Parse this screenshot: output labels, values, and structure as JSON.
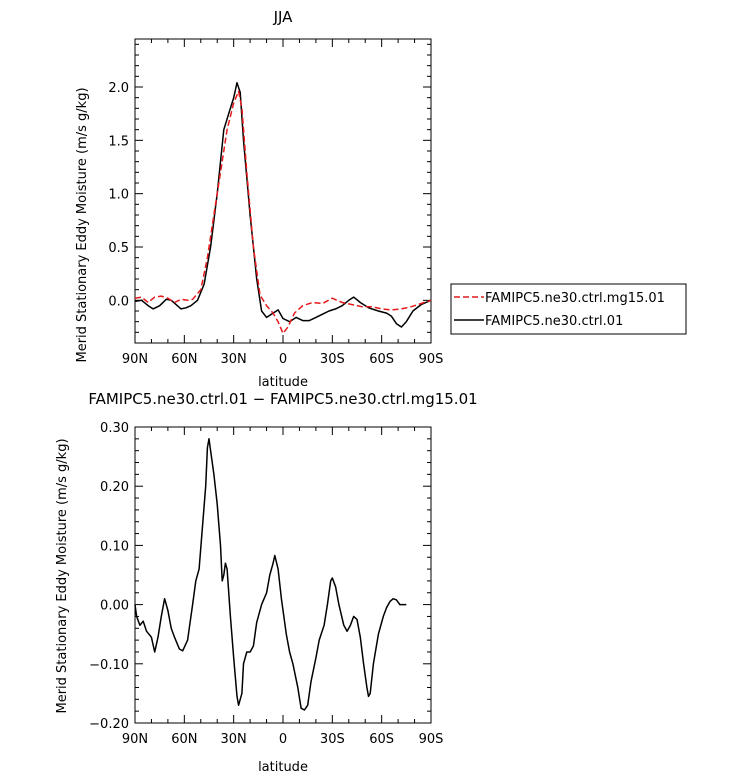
{
  "chart_data": [
    {
      "type": "line",
      "title": "JJA",
      "xlabel": "latitude",
      "ylabel": "Merid Stationary Eddy Moisture (m/s g/kg)",
      "xlim": [
        90,
        -90
      ],
      "ylim": [
        -0.4,
        2.45
      ],
      "x_ticks": [
        90,
        60,
        30,
        0,
        -30,
        -60,
        -90
      ],
      "x_tick_labels": [
        "90N",
        "60N",
        "30N",
        "0",
        "30S",
        "60S",
        "90S"
      ],
      "y_ticks": [
        0.0,
        0.5,
        1.0,
        1.5,
        2.0
      ],
      "y_tick_labels": [
        "0.0",
        "0.5",
        "1.0",
        "1.5",
        "2.0"
      ],
      "legend_position": "right",
      "series": [
        {
          "name": "FAMIPC5.ne30.ctrl.mg15.01",
          "color": "#e41a1c",
          "dash": "dashed",
          "points": [
            [
              90,
              0.02
            ],
            [
              86,
              0.03
            ],
            [
              82,
              -0.02
            ],
            [
              78,
              0.03
            ],
            [
              74,
              0.04
            ],
            [
              70,
              0.02
            ],
            [
              66,
              -0.02
            ],
            [
              62,
              0.01
            ],
            [
              58,
              0.0
            ],
            [
              55,
              0.01
            ],
            [
              50,
              0.1
            ],
            [
              46,
              0.4
            ],
            [
              42,
              0.8
            ],
            [
              38,
              1.2
            ],
            [
              34,
              1.6
            ],
            [
              30,
              1.85
            ],
            [
              27,
              1.96
            ],
            [
              25,
              1.8
            ],
            [
              22,
              1.2
            ],
            [
              18,
              0.5
            ],
            [
              14,
              0.05
            ],
            [
              10,
              -0.05
            ],
            [
              6,
              -0.12
            ],
            [
              3,
              -0.2
            ],
            [
              0,
              -0.31
            ],
            [
              -3,
              -0.25
            ],
            [
              -7,
              -0.12
            ],
            [
              -12,
              -0.05
            ],
            [
              -18,
              -0.02
            ],
            [
              -24,
              -0.03
            ],
            [
              -30,
              0.02
            ],
            [
              -36,
              -0.02
            ],
            [
              -42,
              -0.04
            ],
            [
              -48,
              -0.06
            ],
            [
              -54,
              -0.06
            ],
            [
              -60,
              -0.08
            ],
            [
              -66,
              -0.09
            ],
            [
              -72,
              -0.08
            ],
            [
              -78,
              -0.06
            ],
            [
              -84,
              -0.03
            ],
            [
              -90,
              0.0
            ]
          ]
        },
        {
          "name": "FAMIPC5.ne30.ctrl.01",
          "color": "#000000",
          "dash": "solid",
          "points": [
            [
              90,
              -0.01
            ],
            [
              86,
              0.0
            ],
            [
              82,
              -0.05
            ],
            [
              79,
              -0.08
            ],
            [
              75,
              -0.05
            ],
            [
              71,
              0.01
            ],
            [
              68,
              0.0
            ],
            [
              65,
              -0.04
            ],
            [
              62,
              -0.08
            ],
            [
              59,
              -0.07
            ],
            [
              56,
              -0.05
            ],
            [
              52,
              0.0
            ],
            [
              48,
              0.15
            ],
            [
              44,
              0.5
            ],
            [
              40,
              1.0
            ],
            [
              36,
              1.6
            ],
            [
              33,
              1.75
            ],
            [
              30,
              1.9
            ],
            [
              28,
              2.04
            ],
            [
              26,
              1.95
            ],
            [
              24,
              1.5
            ],
            [
              20,
              0.8
            ],
            [
              16,
              0.2
            ],
            [
              13,
              -0.1
            ],
            [
              10,
              -0.16
            ],
            [
              6,
              -0.12
            ],
            [
              3,
              -0.09
            ],
            [
              0,
              -0.17
            ],
            [
              -4,
              -0.2
            ],
            [
              -8,
              -0.16
            ],
            [
              -12,
              -0.19
            ],
            [
              -16,
              -0.19
            ],
            [
              -20,
              -0.16
            ],
            [
              -24,
              -0.13
            ],
            [
              -28,
              -0.1
            ],
            [
              -32,
              -0.08
            ],
            [
              -36,
              -0.05
            ],
            [
              -40,
              0.0
            ],
            [
              -43,
              0.03
            ],
            [
              -47,
              -0.02
            ],
            [
              -52,
              -0.07
            ],
            [
              -58,
              -0.1
            ],
            [
              -63,
              -0.12
            ],
            [
              -66,
              -0.15
            ],
            [
              -69,
              -0.22
            ],
            [
              -72,
              -0.25
            ],
            [
              -75,
              -0.2
            ],
            [
              -79,
              -0.1
            ],
            [
              -84,
              -0.04
            ],
            [
              -90,
              0.0
            ]
          ]
        }
      ]
    },
    {
      "type": "line",
      "title": "FAMIPC5.ne30.ctrl.01 − FAMIPC5.ne30.ctrl.mg15.01",
      "xlabel": "latitude",
      "ylabel": "Merid Stationary Eddy Moisture (m/s g/kg)",
      "xlim": [
        90,
        -90
      ],
      "ylim": [
        -0.2,
        0.3
      ],
      "x_ticks": [
        90,
        60,
        30,
        0,
        -30,
        -60,
        -90
      ],
      "x_tick_labels": [
        "90N",
        "60N",
        "30N",
        "0",
        "30S",
        "60S",
        "90S"
      ],
      "y_ticks": [
        -0.2,
        -0.1,
        0.0,
        0.1,
        0.2,
        0.3
      ],
      "y_tick_labels": [
        "−0.20",
        "−0.10",
        "0.00",
        "0.10",
        "0.20",
        "0.30"
      ],
      "series": [
        {
          "color": "#000000",
          "dash": "solid",
          "points": [
            [
              90,
              0.0
            ],
            [
              89,
              -0.02
            ],
            [
              87,
              -0.035
            ],
            [
              85,
              -0.028
            ],
            [
              83,
              -0.045
            ],
            [
              80,
              -0.055
            ],
            [
              78,
              -0.08
            ],
            [
              76,
              -0.055
            ],
            [
              74,
              -0.02
            ],
            [
              72,
              0.01
            ],
            [
              70,
              -0.01
            ],
            [
              68,
              -0.04
            ],
            [
              66,
              -0.055
            ],
            [
              63,
              -0.075
            ],
            [
              61,
              -0.078
            ],
            [
              58,
              -0.06
            ],
            [
              55,
              0.0
            ],
            [
              53,
              0.04
            ],
            [
              51,
              0.06
            ],
            [
              49,
              0.13
            ],
            [
              47,
              0.2
            ],
            [
              46,
              0.265
            ],
            [
              45,
              0.28
            ],
            [
              44,
              0.26
            ],
            [
              42,
              0.22
            ],
            [
              40,
              0.17
            ],
            [
              38,
              0.1
            ],
            [
              37,
              0.04
            ],
            [
              36,
              0.05
            ],
            [
              35,
              0.07
            ],
            [
              34,
              0.06
            ],
            [
              32,
              -0.02
            ],
            [
              30,
              -0.09
            ],
            [
              28,
              -0.155
            ],
            [
              27,
              -0.17
            ],
            [
              25,
              -0.15
            ],
            [
              24,
              -0.1
            ],
            [
              22,
              -0.08
            ],
            [
              20,
              -0.08
            ],
            [
              18,
              -0.07
            ],
            [
              16,
              -0.03
            ],
            [
              13,
              0.0
            ],
            [
              10,
              0.02
            ],
            [
              8,
              0.05
            ],
            [
              6,
              0.07
            ],
            [
              5,
              0.083
            ],
            [
              3,
              0.06
            ],
            [
              1,
              0.01
            ],
            [
              -2,
              -0.05
            ],
            [
              -4,
              -0.08
            ],
            [
              -6,
              -0.1
            ],
            [
              -9,
              -0.14
            ],
            [
              -11,
              -0.175
            ],
            [
              -13,
              -0.178
            ],
            [
              -15,
              -0.17
            ],
            [
              -17,
              -0.13
            ],
            [
              -20,
              -0.09
            ],
            [
              -22,
              -0.06
            ],
            [
              -25,
              -0.035
            ],
            [
              -27,
              0.0
            ],
            [
              -29,
              0.04
            ],
            [
              -30,
              0.045
            ],
            [
              -32,
              0.03
            ],
            [
              -34,
              0.0
            ],
            [
              -37,
              -0.035
            ],
            [
              -39,
              -0.045
            ],
            [
              -41,
              -0.035
            ],
            [
              -43,
              -0.02
            ],
            [
              -45,
              -0.025
            ],
            [
              -47,
              -0.055
            ],
            [
              -49,
              -0.1
            ],
            [
              -51,
              -0.14
            ],
            [
              -52,
              -0.155
            ],
            [
              -53,
              -0.15
            ],
            [
              -55,
              -0.1
            ],
            [
              -58,
              -0.05
            ],
            [
              -61,
              -0.02
            ],
            [
              -63,
              -0.005
            ],
            [
              -65,
              0.005
            ],
            [
              -67,
              0.01
            ],
            [
              -69,
              0.008
            ],
            [
              -71,
              0.0
            ],
            [
              -73,
              0.0
            ],
            [
              -75,
              0.0
            ]
          ]
        }
      ]
    }
  ]
}
